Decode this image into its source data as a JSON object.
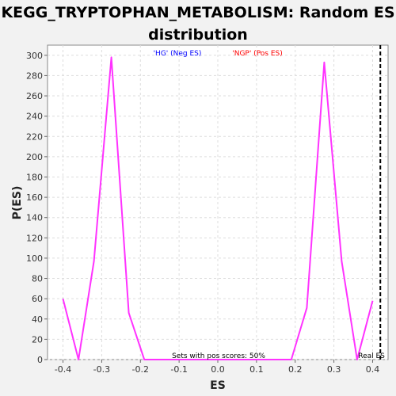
{
  "chart_data": {
    "type": "line",
    "title_line1": "KEGG_TRYPTOPHAN_METABOLISM: Random ES",
    "title_line2": "distribution",
    "xlabel": "ES",
    "ylabel": "P(ES)",
    "xlim": [
      -0.44,
      0.44
    ],
    "ylim": [
      0,
      310
    ],
    "xticks": [
      -0.4,
      -0.3,
      -0.2,
      -0.1,
      0.0,
      0.1,
      0.2,
      0.3,
      0.4
    ],
    "xtick_labels": [
      "-0.4",
      "-0.3",
      "-0.2",
      "-0.1",
      "0.0",
      "0.1",
      "0.2",
      "0.3",
      "0.4"
    ],
    "yticks": [
      0,
      20,
      40,
      60,
      80,
      100,
      120,
      140,
      160,
      180,
      200,
      220,
      240,
      260,
      280,
      300
    ],
    "ytick_labels": [
      "0",
      "20",
      "40",
      "60",
      "80",
      "100",
      "120",
      "140",
      "160",
      "180",
      "200",
      "220",
      "240",
      "260",
      "280",
      "300"
    ],
    "grid": true,
    "legend": {
      "neg": {
        "text": "'HG' (Neg ES)",
        "color": "#0000ff"
      },
      "pos": {
        "text": "'NGP' (Pos ES)",
        "color": "#ff0000"
      }
    },
    "annotation": "Sets with pos scores: 50%",
    "real_es": {
      "label": "Real ES",
      "x": 0.42
    },
    "series": [
      {
        "color": "#ff33ff",
        "x": [
          -0.4,
          -0.36,
          -0.32,
          -0.275,
          -0.23,
          -0.19,
          -0.15,
          0.0,
          0.15,
          0.19,
          0.23,
          0.275,
          0.32,
          0.36,
          0.4
        ],
        "y": [
          60,
          0,
          97,
          298,
          46,
          0,
          0,
          0,
          0,
          0,
          51,
          293,
          97,
          0,
          58
        ]
      }
    ]
  }
}
